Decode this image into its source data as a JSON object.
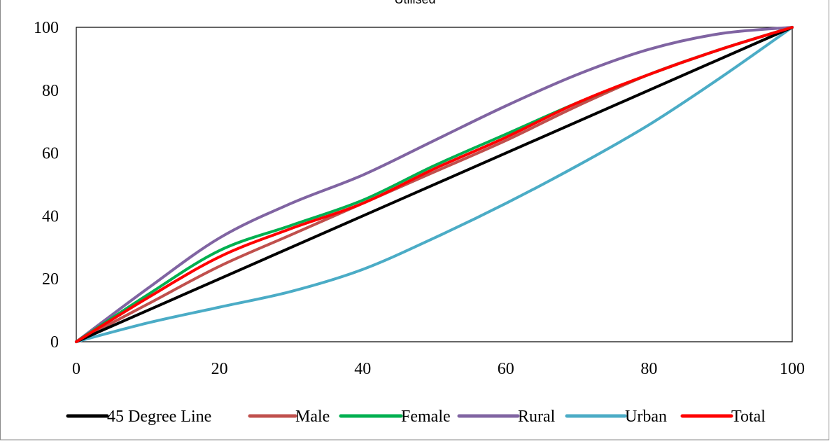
{
  "chart_data": {
    "type": "line",
    "title": "Utilised",
    "xlabel": "",
    "ylabel": "",
    "xlim": [
      0,
      100
    ],
    "ylim": [
      0,
      100
    ],
    "x_ticks": [
      0,
      20,
      40,
      60,
      80,
      100
    ],
    "y_ticks": [
      0,
      20,
      40,
      60,
      80,
      100
    ],
    "grid": false,
    "legend_position": "bottom",
    "series": [
      {
        "name": "45 Degree Line",
        "color": "#000000",
        "points": [
          [
            0,
            0
          ],
          [
            100,
            100
          ]
        ]
      },
      {
        "name": "Male",
        "color": "#C0504D",
        "points": [
          [
            0,
            0
          ],
          [
            10,
            12
          ],
          [
            20,
            24
          ],
          [
            30,
            34
          ],
          [
            40,
            44
          ],
          [
            50,
            54
          ],
          [
            60,
            64
          ],
          [
            70,
            75
          ],
          [
            80,
            85
          ],
          [
            90,
            93
          ],
          [
            100,
            100
          ]
        ]
      },
      {
        "name": "Female",
        "color": "#00B050",
        "points": [
          [
            0,
            0
          ],
          [
            10,
            15
          ],
          [
            20,
            29
          ],
          [
            30,
            37
          ],
          [
            40,
            45
          ],
          [
            50,
            56
          ],
          [
            60,
            66
          ],
          [
            70,
            76
          ],
          [
            80,
            85
          ],
          [
            90,
            93
          ],
          [
            100,
            100
          ]
        ]
      },
      {
        "name": "Rural",
        "color": "#8064A2",
        "points": [
          [
            0,
            0
          ],
          [
            10,
            17
          ],
          [
            20,
            33
          ],
          [
            30,
            44
          ],
          [
            40,
            53
          ],
          [
            50,
            64
          ],
          [
            60,
            75
          ],
          [
            70,
            85
          ],
          [
            80,
            93
          ],
          [
            90,
            98
          ],
          [
            100,
            100
          ]
        ]
      },
      {
        "name": "Urban",
        "color": "#4BACC6",
        "points": [
          [
            0,
            0
          ],
          [
            10,
            6
          ],
          [
            20,
            11
          ],
          [
            30,
            16
          ],
          [
            40,
            23
          ],
          [
            50,
            33
          ],
          [
            60,
            44
          ],
          [
            70,
            56
          ],
          [
            80,
            69
          ],
          [
            90,
            84
          ],
          [
            100,
            100
          ]
        ]
      },
      {
        "name": "Total",
        "color": "#FF0000",
        "points": [
          [
            0,
            0
          ],
          [
            10,
            14
          ],
          [
            20,
            27
          ],
          [
            30,
            36
          ],
          [
            40,
            44
          ],
          [
            50,
            55
          ],
          [
            60,
            65
          ],
          [
            70,
            76
          ],
          [
            80,
            85
          ],
          [
            90,
            93
          ],
          [
            100,
            100
          ]
        ]
      }
    ]
  }
}
